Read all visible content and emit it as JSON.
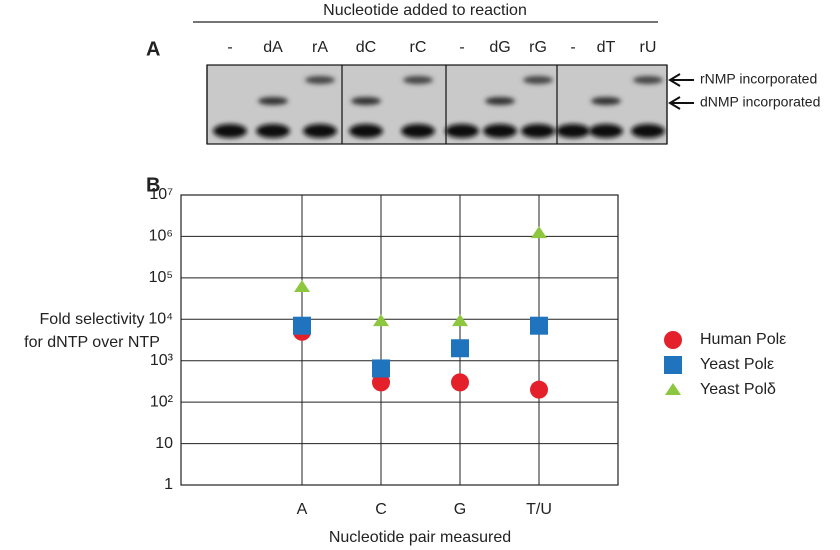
{
  "panel_a": {
    "label": "A",
    "header": "Nucleotide added to reaction",
    "lanes": [
      "-",
      "dA",
      "rA",
      "dC",
      "rC",
      "-",
      "dG",
      "rG",
      "-",
      "dT",
      "rU"
    ],
    "annotations": [
      "rNMP incorporated",
      "dNMP incorporated"
    ]
  },
  "chart_data": {
    "type": "scatter",
    "panel_label": "B",
    "y_label": [
      "Fold selectivity",
      "for dNTP over NTP"
    ],
    "x_label": "Nucleotide pair measured",
    "categories": [
      "A",
      "C",
      "G",
      "T/U"
    ],
    "log_scale": true,
    "grid": true,
    "ylim": [
      1,
      10000000
    ],
    "yticks": [
      1,
      10,
      {
        "value": 100,
        "label": "10²"
      },
      {
        "value": 1000,
        "label": "10³"
      },
      {
        "value": 10000,
        "label": "10⁴"
      },
      {
        "value": 100000,
        "label": "10⁵"
      },
      {
        "value": 1000000,
        "label": "10⁶"
      },
      {
        "value": 10000000,
        "label": "10⁷"
      }
    ],
    "series": [
      {
        "name": "Human Polε",
        "color": "#e4202a",
        "marker": "circle",
        "values": [
          5000,
          300,
          300,
          200
        ]
      },
      {
        "name": "Yeast Polε",
        "color": "#1f74bd",
        "marker": "square",
        "values": [
          7000,
          650,
          2000,
          7000
        ]
      },
      {
        "name": "Yeast Polδ",
        "color": "#8dc63f",
        "marker": "triangle",
        "values": [
          60000,
          9000,
          9000,
          1200000
        ]
      }
    ]
  }
}
